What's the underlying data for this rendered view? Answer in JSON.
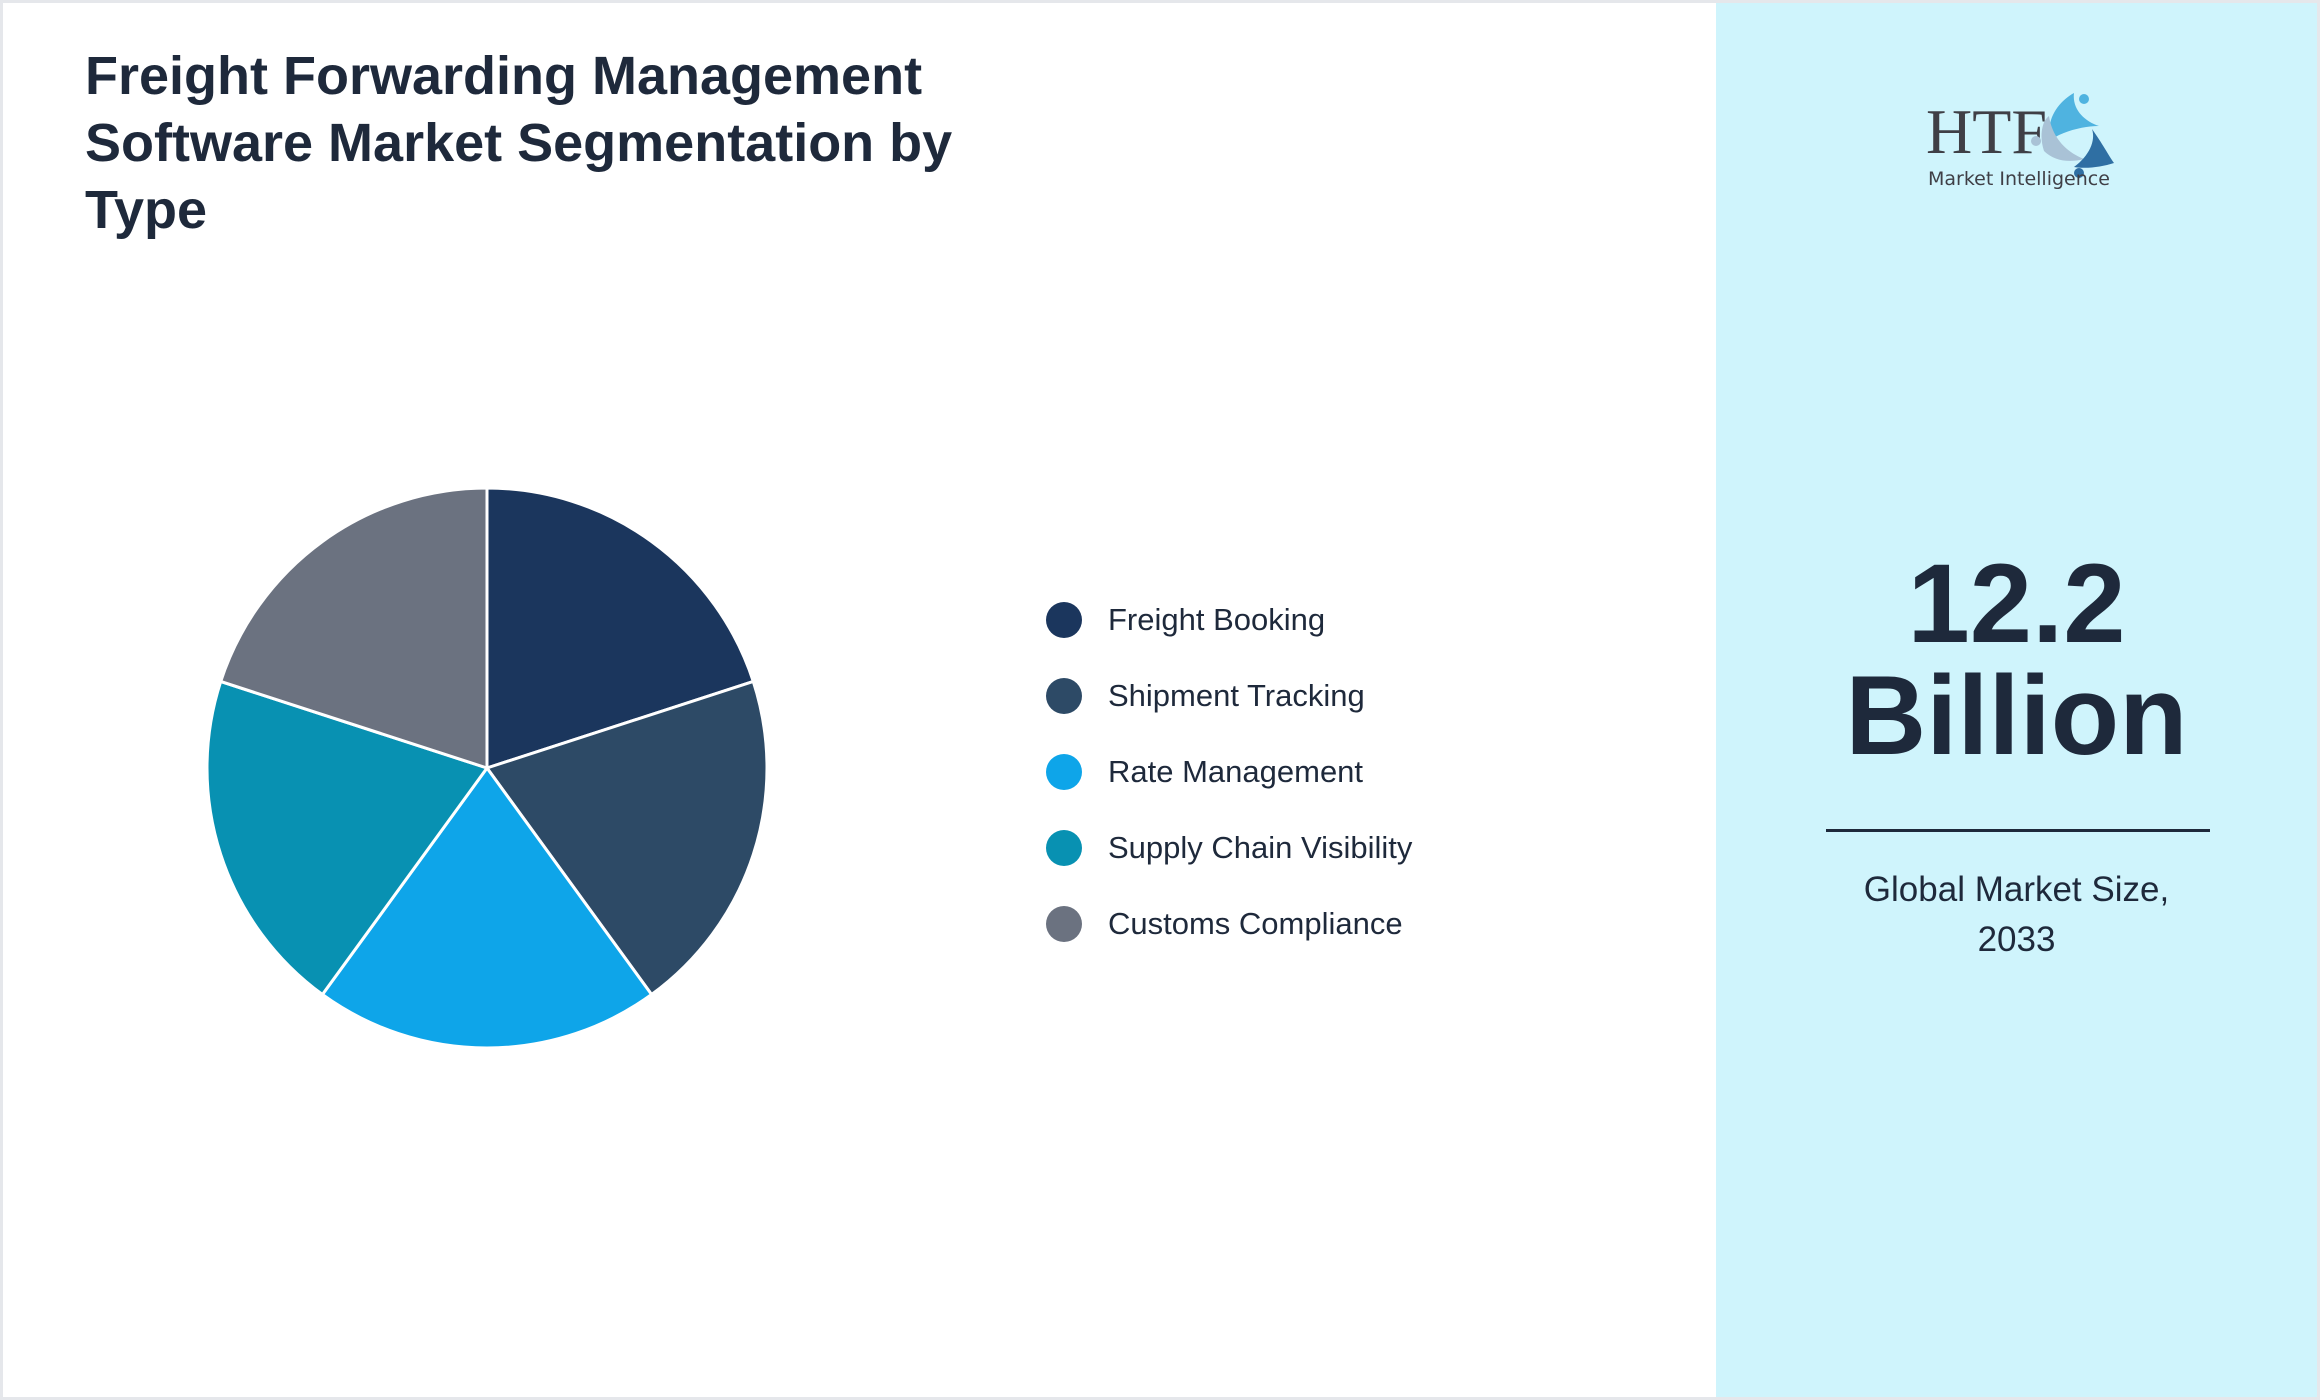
{
  "title": "Freight Forwarding Management Software Market Segmentation by Type",
  "chart_data": {
    "type": "pie",
    "title": "Freight Forwarding Management Software Market Segmentation by Type",
    "legend_position": "right",
    "start_angle": "top, clockwise",
    "slices": [
      {
        "label": "Freight Booking",
        "value": 20,
        "color": "#1b365d"
      },
      {
        "label": "Shipment Tracking",
        "value": 20,
        "color": "#2d4a66"
      },
      {
        "label": "Rate Management",
        "value": 20,
        "color": "#0ea5e9"
      },
      {
        "label": "Supply Chain Visibility",
        "value": 20,
        "color": "#0891b2"
      },
      {
        "label": "Customs Compliance",
        "value": 20,
        "color": "#6b7280"
      }
    ]
  },
  "side_panel": {
    "value": "12.2",
    "unit": "Billion",
    "caption_line1": "Global Market Size,",
    "caption_line2": "2033",
    "background": "#cff4fc"
  },
  "logo": {
    "text": "HTF",
    "subtext": "Market Intelligence"
  }
}
